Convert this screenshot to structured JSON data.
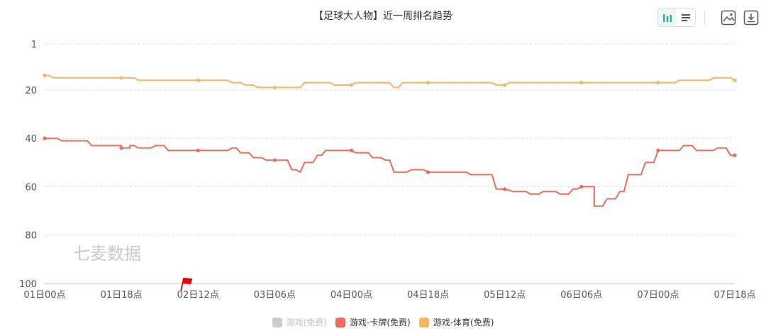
{
  "header": {
    "title": "【足球大人物】近一周排名趋势"
  },
  "toolbar": {
    "view_chart_icon": "bar-chart-icon",
    "view_list_icon": "list-icon",
    "save_image_icon": "image-icon",
    "download_icon": "download-icon"
  },
  "watermark": "七麦数据",
  "chart_data": {
    "type": "line",
    "title": "【足球大人物】近一周排名趋势",
    "xlabel": "",
    "ylabel": "",
    "y_inverted": true,
    "ylim": [
      1,
      100
    ],
    "yticks": [
      "1",
      "20",
      "40",
      "60",
      "80",
      "100"
    ],
    "x_range": [
      0,
      162
    ],
    "x_ticks": [
      {
        "x": 0,
        "label": "01日00点"
      },
      {
        "x": 18,
        "label": "01日18点"
      },
      {
        "x": 36,
        "label": "02日12点"
      },
      {
        "x": 54,
        "label": "03日06点"
      },
      {
        "x": 72,
        "label": "04日00点"
      },
      {
        "x": 90,
        "label": "04日18点"
      },
      {
        "x": 108,
        "label": "05日12点"
      },
      {
        "x": 126,
        "label": "06日06点"
      },
      {
        "x": 144,
        "label": "07日00点"
      },
      {
        "x": 162,
        "label": "07日18点"
      }
    ],
    "grid": true,
    "legend_position": "bottom",
    "legend": [
      {
        "name": "游戏(免费)",
        "color": "#cccccc",
        "active": false
      },
      {
        "name": "游戏-卡牌(免费)",
        "color": "#ef6a5c",
        "active": true
      },
      {
        "name": "游戏-体育(免费)",
        "color": "#f8b45d",
        "active": true
      }
    ],
    "series": [
      {
        "name": "游戏-体育(免费)",
        "color": "#f8b45d",
        "points": [
          [
            0,
            14
          ],
          [
            1,
            14
          ],
          [
            2,
            15
          ],
          [
            12,
            15
          ],
          [
            18,
            15
          ],
          [
            21,
            15
          ],
          [
            22,
            16
          ],
          [
            30,
            16
          ],
          [
            36,
            16
          ],
          [
            43,
            16
          ],
          [
            44,
            17
          ],
          [
            46,
            17
          ],
          [
            47,
            18
          ],
          [
            49,
            18
          ],
          [
            50,
            19
          ],
          [
            54,
            19
          ],
          [
            60,
            19
          ],
          [
            61,
            17
          ],
          [
            67,
            17
          ],
          [
            68,
            18
          ],
          [
            72,
            18
          ],
          [
            73,
            17
          ],
          [
            81,
            17
          ],
          [
            82,
            19
          ],
          [
            83,
            19
          ],
          [
            84,
            17
          ],
          [
            90,
            17
          ],
          [
            105,
            17
          ],
          [
            106,
            18
          ],
          [
            108,
            18
          ],
          [
            109,
            17
          ],
          [
            126,
            17
          ],
          [
            144,
            17
          ],
          [
            148,
            17
          ],
          [
            149,
            16
          ],
          [
            156,
            16
          ],
          [
            157,
            15
          ],
          [
            161,
            15
          ],
          [
            162,
            16
          ]
        ]
      },
      {
        "name": "游戏-卡牌(免费)",
        "color": "#ef6a5c",
        "points": [
          [
            0,
            40
          ],
          [
            3,
            40
          ],
          [
            4,
            41
          ],
          [
            10,
            41
          ],
          [
            11,
            43
          ],
          [
            18,
            43
          ],
          [
            18,
            44
          ],
          [
            20,
            44
          ],
          [
            20,
            43
          ],
          [
            21,
            43
          ],
          [
            22,
            44
          ],
          [
            25,
            44
          ],
          [
            26,
            43
          ],
          [
            28,
            43
          ],
          [
            29,
            45
          ],
          [
            36,
            45
          ],
          [
            43,
            45
          ],
          [
            44,
            44
          ],
          [
            45,
            44
          ],
          [
            46,
            46
          ],
          [
            48,
            46
          ],
          [
            49,
            48
          ],
          [
            51,
            48
          ],
          [
            52,
            49
          ],
          [
            54,
            49
          ],
          [
            57,
            49
          ],
          [
            58,
            53
          ],
          [
            59,
            53
          ],
          [
            60,
            54
          ],
          [
            61,
            50
          ],
          [
            63,
            50
          ],
          [
            64,
            47
          ],
          [
            65,
            47
          ],
          [
            66,
            45
          ],
          [
            72,
            45
          ],
          [
            73,
            46
          ],
          [
            76,
            46
          ],
          [
            77,
            48
          ],
          [
            79,
            48
          ],
          [
            80,
            49
          ],
          [
            81,
            49
          ],
          [
            82,
            54
          ],
          [
            85,
            54
          ],
          [
            86,
            53
          ],
          [
            89,
            53
          ],
          [
            90,
            54
          ],
          [
            99,
            54
          ],
          [
            100,
            55
          ],
          [
            105,
            55
          ],
          [
            106,
            61
          ],
          [
            108,
            61
          ],
          [
            110,
            62
          ],
          [
            113,
            62
          ],
          [
            114,
            63
          ],
          [
            116,
            63
          ],
          [
            117,
            62
          ],
          [
            120,
            62
          ],
          [
            121,
            63
          ],
          [
            123,
            63
          ],
          [
            124,
            61
          ],
          [
            125,
            61
          ],
          [
            126,
            60
          ],
          [
            128,
            60
          ],
          [
            129,
            60
          ],
          [
            129,
            68
          ],
          [
            131,
            68
          ],
          [
            132,
            65
          ],
          [
            134,
            65
          ],
          [
            135,
            62
          ],
          [
            136,
            62
          ],
          [
            137,
            55
          ],
          [
            140,
            55
          ],
          [
            141,
            50
          ],
          [
            142,
            50
          ],
          [
            143,
            50
          ],
          [
            144,
            45
          ],
          [
            149,
            45
          ],
          [
            150,
            43
          ],
          [
            152,
            43
          ],
          [
            153,
            45
          ],
          [
            157,
            45
          ],
          [
            158,
            44
          ],
          [
            160,
            44
          ],
          [
            161,
            47
          ],
          [
            162,
            47
          ]
        ]
      }
    ],
    "markers": [
      {
        "series": "游戏-体育(免费)",
        "x": [
          0,
          18,
          36,
          54,
          72,
          90,
          108,
          126,
          144,
          162
        ]
      },
      {
        "series": "游戏-卡牌(免费)",
        "x": [
          0,
          18,
          36,
          54,
          72,
          90,
          108,
          126,
          144,
          162
        ]
      }
    ],
    "flag": {
      "x": 33,
      "color": "#e60000"
    }
  }
}
